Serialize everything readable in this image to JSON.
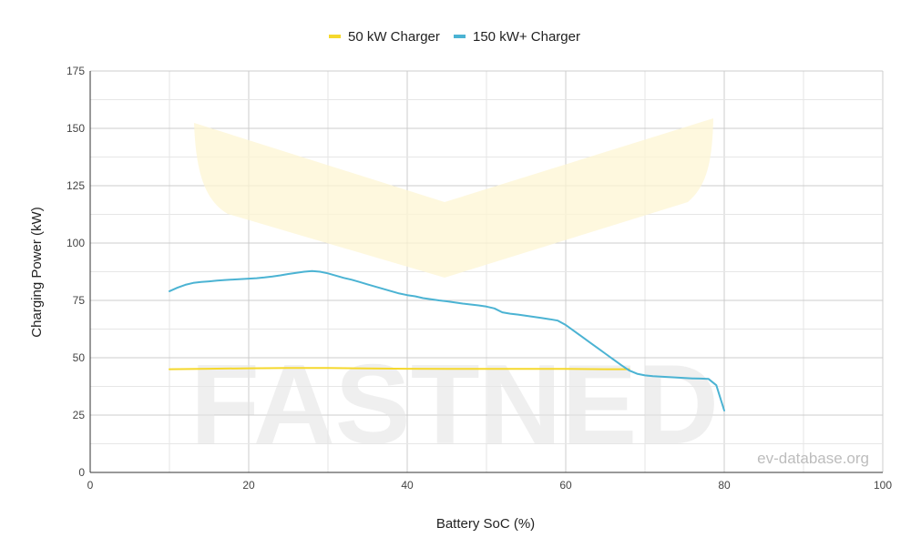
{
  "chart_data": {
    "type": "line",
    "xlabel": "Battery SoC (%)",
    "ylabel": "Charging Power (kW)",
    "xlim": [
      0,
      100
    ],
    "ylim": [
      0,
      175
    ],
    "x_ticks": [
      0,
      20,
      40,
      60,
      80,
      100
    ],
    "y_ticks": [
      0,
      25,
      50,
      75,
      100,
      125,
      150,
      175
    ],
    "grid": true,
    "legend": "top-center",
    "series": [
      {
        "name": "50 kW Charger",
        "color": "#F5D82C",
        "x": [
          10,
          15,
          20,
          25,
          30,
          35,
          40,
          45,
          50,
          55,
          60,
          65,
          68
        ],
        "y": [
          45,
          45.2,
          45.4,
          45.5,
          45.5,
          45.3,
          45.2,
          45.1,
          45.1,
          45.1,
          45.1,
          45.0,
          45.0
        ]
      },
      {
        "name": "150 kW+ Charger",
        "color": "#4BB3D3",
        "x": [
          10,
          11,
          12,
          13,
          14,
          15,
          16,
          17,
          18,
          19,
          20,
          21,
          22,
          23,
          24,
          25,
          26,
          27,
          28,
          29,
          30,
          31,
          32,
          33,
          34,
          35,
          36,
          37,
          38,
          39,
          40,
          41,
          42,
          43,
          44,
          45,
          46,
          47,
          48,
          49,
          50,
          51,
          52,
          53,
          54,
          55,
          56,
          57,
          58,
          59,
          60,
          61,
          62,
          63,
          64,
          65,
          66,
          67,
          68,
          69,
          70,
          71,
          72,
          73,
          74,
          75,
          76,
          77,
          78,
          79,
          80
        ],
        "y": [
          79,
          80.5,
          81.8,
          82.6,
          83,
          83.3,
          83.6,
          83.9,
          84.1,
          84.3,
          84.5,
          84.7,
          85,
          85.4,
          85.9,
          86.5,
          87,
          87.5,
          87.8,
          87.5,
          86.8,
          85.8,
          84.8,
          84,
          83,
          82,
          81,
          80,
          79,
          78,
          77.3,
          76.8,
          76,
          75.5,
          75,
          74.6,
          74.1,
          73.6,
          73.2,
          72.8,
          72.3,
          71.5,
          69.8,
          69.2,
          68.8,
          68.3,
          67.8,
          67.3,
          66.8,
          66.2,
          64.3,
          61.8,
          59.3,
          56.8,
          54.3,
          51.8,
          49.3,
          46.8,
          44.5,
          43,
          42.3,
          42,
          41.8,
          41.6,
          41.4,
          41.2,
          41,
          40.9,
          40.8,
          38,
          27
        ]
      }
    ]
  },
  "watermark": {
    "brand": "FASTNED",
    "source": "ev-database.org"
  }
}
